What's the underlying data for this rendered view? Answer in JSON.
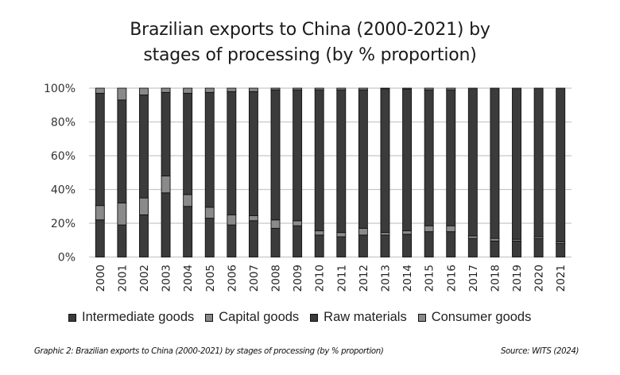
{
  "chart_data": {
    "type": "bar",
    "stacked": true,
    "title_lines": [
      "Brazilian exports to China (2000-2021) by",
      "stages of processing (by % proportion)"
    ],
    "xlabel": "",
    "ylabel": "",
    "ylim": [
      0,
      100
    ],
    "yticks": [
      "0%",
      "20%",
      "40%",
      "60%",
      "80%",
      "100%"
    ],
    "ytick_values": [
      0,
      20,
      40,
      60,
      80,
      100
    ],
    "grid": true,
    "legend_position": "bottom",
    "categories": [
      "2000",
      "2001",
      "2002",
      "2003",
      "2004",
      "2005",
      "2006",
      "2007",
      "2008",
      "2009",
      "2010",
      "2011",
      "2012",
      "2013",
      "2014",
      "2015",
      "2016",
      "2017",
      "2018",
      "2019",
      "2020",
      "2021"
    ],
    "series": [
      {
        "name": "Intermediate goods",
        "color": "#3b3b3b",
        "values": [
          22,
          19,
          25,
          38,
          30,
          23,
          19,
          21.5,
          17,
          18.5,
          13,
          12,
          13,
          13,
          13.5,
          15,
          15,
          11,
          9.5,
          9.5,
          11,
          8
        ]
      },
      {
        "name": "Capital goods",
        "color": "#8a8a8a",
        "values": [
          8.5,
          13,
          10,
          10,
          7,
          6.5,
          6,
          3,
          5,
          3,
          2.5,
          2.5,
          4,
          1.5,
          2,
          3.5,
          3.5,
          1.5,
          1.5,
          1,
          1,
          1
        ]
      },
      {
        "name": "Raw materials",
        "color": "#3b3b3b",
        "values": [
          66.5,
          61,
          61,
          49.5,
          60,
          68,
          73,
          73.5,
          77,
          77.5,
          83.5,
          84.5,
          82,
          85.2,
          84,
          80.5,
          80.5,
          87.5,
          89,
          89.5,
          88,
          91
        ]
      },
      {
        "name": "Consumer goods",
        "color": "#8a8a8a",
        "values": [
          3,
          7,
          4,
          2.5,
          3,
          2.5,
          2,
          2,
          1,
          1,
          1,
          1,
          1,
          0.3,
          0.5,
          1,
          1,
          0,
          0,
          0,
          0,
          0
        ]
      }
    ]
  },
  "caption": "Graphic 2: Brazilian exports to China (2000-2021) by stages of processing (by % proportion)",
  "source": "Source: WITS (2024)"
}
